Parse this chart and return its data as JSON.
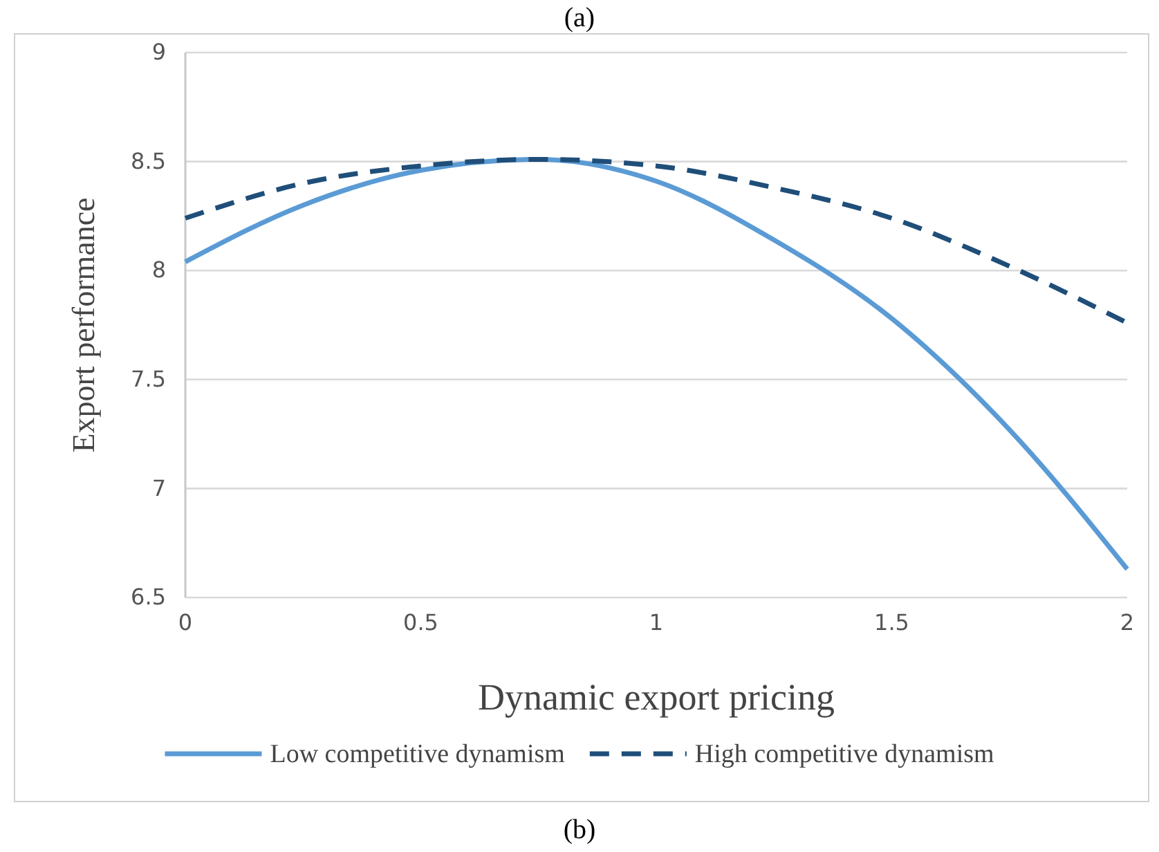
{
  "chart_data": {
    "type": "line",
    "xlabel": "Dynamic export pricing",
    "ylabel": "Export performance",
    "x": [
      0,
      0.25,
      0.5,
      0.75,
      1,
      1.25,
      1.5,
      1.75,
      2
    ],
    "series": [
      {
        "name": "Low competitive dynamism",
        "color": "#5b9bd5",
        "line_style": "solid",
        "values": [
          8.04,
          8.3,
          8.46,
          8.51,
          8.41,
          8.14,
          7.78,
          7.27,
          6.63
        ]
      },
      {
        "name": "High competitive dynamism",
        "color": "#1f4e79",
        "line_style": "dashed",
        "values": [
          8.24,
          8.4,
          8.48,
          8.51,
          8.48,
          8.38,
          8.24,
          8.02,
          7.76
        ]
      }
    ],
    "xlim": [
      0,
      2
    ],
    "xticks": [
      0,
      0.5,
      1,
      1.5,
      2
    ],
    "ylim": [
      6.5,
      9
    ],
    "yticks": [
      6.5,
      7,
      7.5,
      8,
      8.5,
      9
    ],
    "grid": "y",
    "legend": "bottom",
    "annotations": [
      "(a)",
      "(b)"
    ]
  }
}
